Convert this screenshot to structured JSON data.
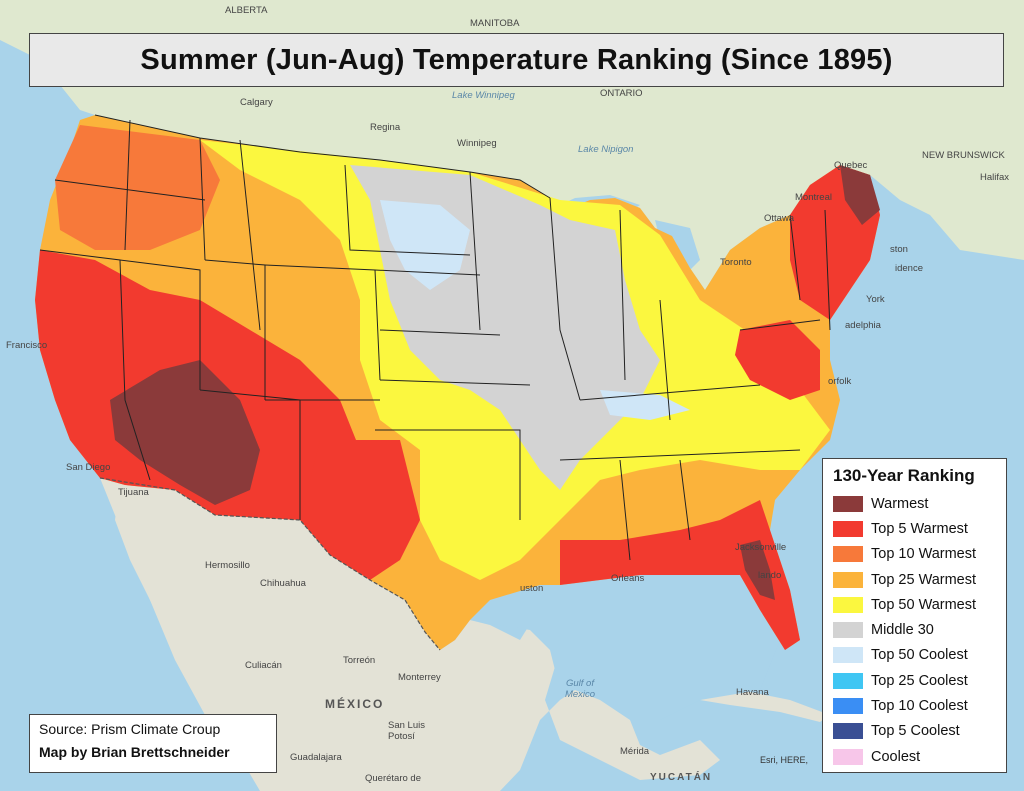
{
  "title": "Summer (Jun-Aug) Temperature Ranking (Since 1895)",
  "legend": {
    "title": "130-Year Ranking",
    "items": [
      {
        "label": "Warmest",
        "color": "#8b3a3a"
      },
      {
        "label": "Top 5 Warmest",
        "color": "#f23a2f"
      },
      {
        "label": "Top 10 Warmest",
        "color": "#f7793a"
      },
      {
        "label": "Top 25 Warmest",
        "color": "#fbb33b"
      },
      {
        "label": "Top 50 Warmest",
        "color": "#fbf73f"
      },
      {
        "label": "Middle 30",
        "color": "#d3d3d3"
      },
      {
        "label": "Top 50 Coolest",
        "color": "#cfe6f7"
      },
      {
        "label": "Top 25 Coolest",
        "color": "#3fc6f3"
      },
      {
        "label": "Top 10 Coolest",
        "color": "#3a8ef4"
      },
      {
        "label": "Top 5 Coolest",
        "color": "#3a4f94"
      },
      {
        "label": "Coolest",
        "color": "#f7c6e9"
      }
    ]
  },
  "source": {
    "line1": "Source: Prism Climate Croup",
    "line2": "Map by Brian Brettschneider"
  },
  "attribution": "Esri, HERE,",
  "places": {
    "calgary": "Calgary",
    "regina": "Regina",
    "winnipeg": "Winnipeg",
    "manitoba": "MANITOBA",
    "alberta": "ALBERTA",
    "ontario": "ONTARIO",
    "lake_winnipeg": "Lake Winnipeg",
    "lake_nipigon": "Lake Nipigon",
    "quebec": "Quebec",
    "montreal": "Montreal",
    "ottawa": "Ottawa",
    "toronto": "Toronto",
    "halifax": "Halifax",
    "new_brunswick": "NEW BRUNSWICK",
    "francisco": "Francisco",
    "san_diego": "San Diego",
    "tijuana": "Tijuana",
    "hermosillo": "Hermosillo",
    "chihuahua": "Chihuahua",
    "culiacan": "Culiacán",
    "torreon": "Torreón",
    "monterrey": "Monterrey",
    "mexico": "MÉXICO",
    "san_luis_potosi": "San Luis Potosí",
    "guadalajara": "Guadalajara",
    "queretaro": "Querétaro de",
    "gulf_of_mexico": "Gulf of Mexico",
    "havana": "Havana",
    "merida": "Mérida",
    "yucatan": "YUCATÁN",
    "jacksonville": "Jacksonville",
    "orleans": "Orleans",
    "orlando": "lando",
    "ston": "uston",
    "norfolk": "orfolk",
    "philadelphia": "adelphia",
    "new_york": "York",
    "providence": "idence",
    "boston": "ston"
  }
}
